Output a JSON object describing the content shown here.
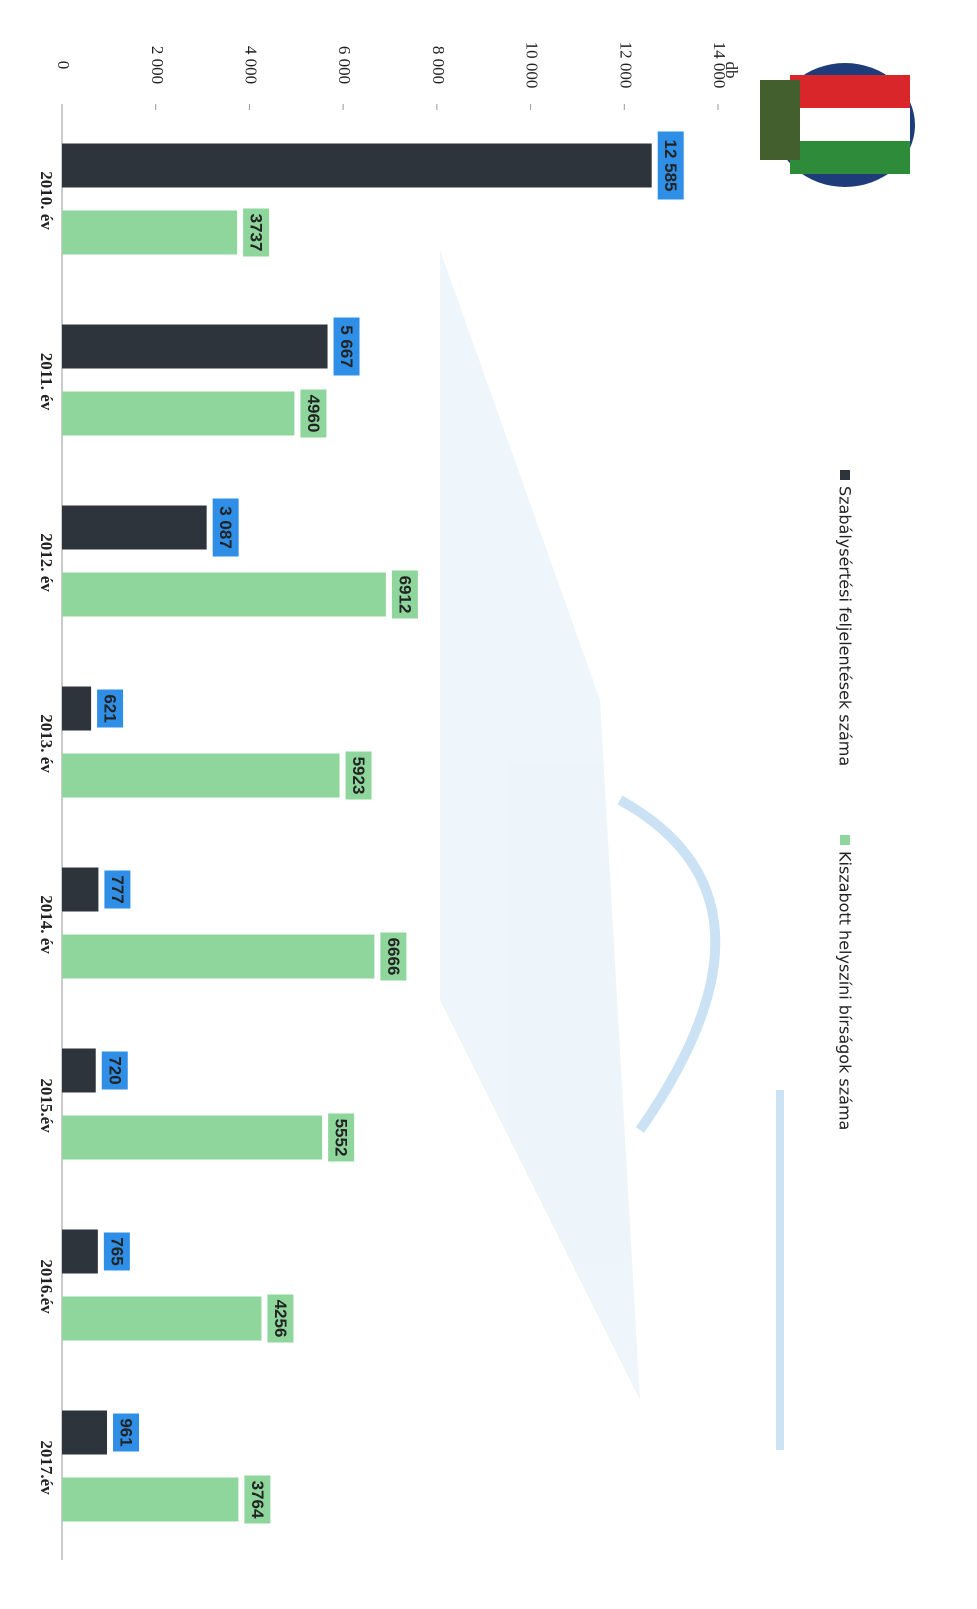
{
  "chart_data": {
    "type": "bar",
    "orientation": "horizontal",
    "ylabel": "db",
    "categories": [
      "2010. év",
      "2011. év",
      "2012. év",
      "2013. év",
      "2014. év",
      "2015.év",
      "2016.év",
      "2017.év"
    ],
    "series": [
      {
        "name": "Szabálysértési feljelentések száma",
        "color": "#2e343c",
        "values": [
          12585,
          5667,
          3087,
          621,
          777,
          720,
          765,
          961
        ],
        "value_labels": [
          "12 585",
          "5 667",
          "3 087",
          "621",
          "777",
          "720",
          "765",
          "961"
        ]
      },
      {
        "name": "Kiszabott helyszíni bírságok száma",
        "color": "#8ed69c",
        "values": [
          3737,
          4960,
          6912,
          5923,
          6666,
          5552,
          4256,
          3764
        ]
      }
    ],
    "ylim": [
      0,
      14000
    ],
    "yticks": [
      0,
      {
        "value": 2000,
        "label": "2 000"
      },
      {
        "value": 4000,
        "label": "4 000"
      },
      {
        "value": 6000,
        "label": "6 000"
      },
      {
        "value": 8000,
        "label": "8 000"
      },
      {
        "value": 10000,
        "label": "10 000"
      },
      {
        "value": 12000,
        "label": "12 000"
      },
      {
        "value": 14000,
        "label": "14 000"
      }
    ],
    "grid": false
  }
}
